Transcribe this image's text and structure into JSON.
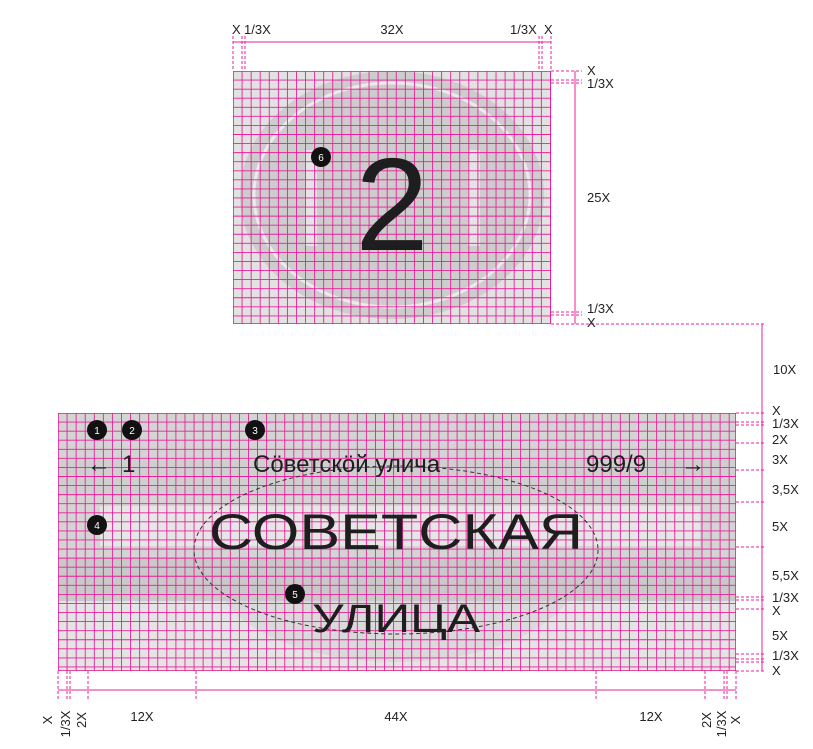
{
  "house_sign": {
    "number": "2",
    "marker": "6",
    "top_dims": [
      "X",
      "1/3X",
      "32X",
      "1/3X",
      "X"
    ],
    "right_dims": [
      "X",
      "1/3X",
      "25X",
      "1/3X",
      "X"
    ]
  },
  "gap_dim": "10X",
  "street_sign": {
    "left_arrow": "←",
    "left_number": "1",
    "transliteration": "Сöветскöй улича",
    "range_number": "999/9",
    "right_arrow": "→",
    "name_line1": "СОВЕТСКАЯ",
    "name_line2": "УЛИЦА",
    "markers": [
      "1",
      "2",
      "3",
      "4",
      "5"
    ],
    "right_dims": [
      "X",
      "1/3X",
      "2X",
      "3X",
      "3,5X",
      "5X",
      "5,5X",
      "1/3X",
      "X",
      "5X",
      "X",
      "1/3X",
      "X"
    ],
    "bottom_dims": [
      "X",
      "1/3X",
      "2X",
      "12X",
      "44X",
      "12X",
      "2X",
      "1/3X",
      "X"
    ]
  },
  "colors": {
    "grid": "#e8209a",
    "panel": "#d7d7d7",
    "panel_light": "#e6e6e6",
    "text": "#1e1e1e",
    "marker": "#111111"
  }
}
